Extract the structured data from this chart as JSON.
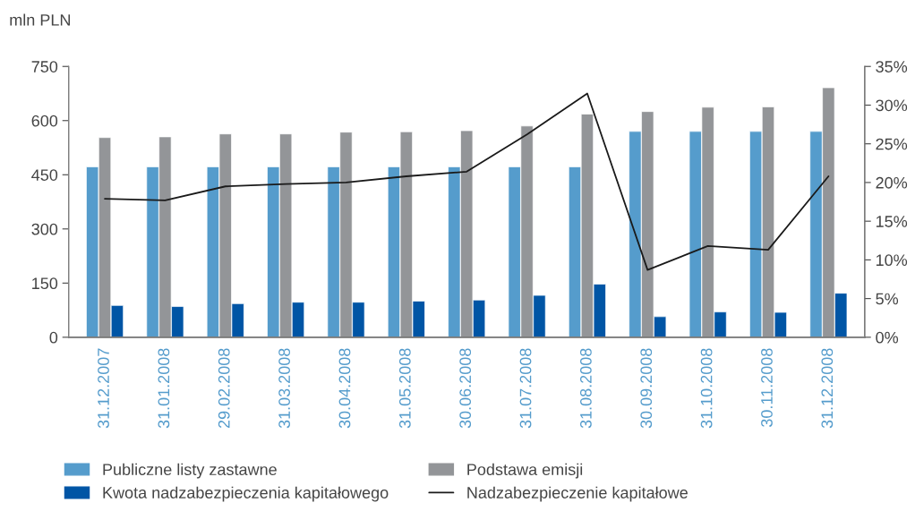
{
  "chart_data": {
    "type": "bar",
    "ylabel": "mln PLN",
    "categories": [
      "31.12.2007",
      "31.01.2008",
      "29.02.2008",
      "31.03.2008",
      "30.04.2008",
      "31.05.2008",
      "30.06.2008",
      "31.07.2008",
      "31.08.2008",
      "30.09.2008",
      "31.10.2008",
      "30.11.2008",
      "31.12.2008"
    ],
    "series": [
      {
        "name": "Publiczne listy zastawne",
        "color": "#559ccc",
        "values": [
          472,
          472,
          472,
          472,
          472,
          472,
          472,
          472,
          472,
          570,
          570,
          570,
          570
        ]
      },
      {
        "name": "Podstawa emisji",
        "color": "#939598",
        "values": [
          553,
          555,
          563,
          563,
          568,
          569,
          572,
          585,
          618,
          625,
          637,
          638,
          691
        ]
      },
      {
        "name": "Kwota nadzabezpieczenia kapitałowego",
        "color": "#0055a5",
        "values": [
          88,
          85,
          93,
          97,
          97,
          100,
          103,
          116,
          147,
          57,
          70,
          69,
          122
        ]
      },
      {
        "name": "Nadzabezpieczenie kapitałowe",
        "type": "line",
        "axis": "y2",
        "color": "#1a1a1a",
        "values": [
          17.9,
          17.7,
          19.5,
          19.8,
          20.0,
          20.8,
          21.4,
          26.2,
          31.5,
          8.7,
          11.8,
          11.3,
          20.8
        ]
      }
    ],
    "ylim": [
      0,
      750
    ],
    "yticks": [
      0,
      150,
      300,
      450,
      600,
      750
    ],
    "y2lim": [
      0,
      35
    ],
    "y2ticks": [
      {
        "value": 0,
        "label": "0%"
      },
      {
        "value": 5,
        "label": "5%"
      },
      {
        "value": 10,
        "label": "10%"
      },
      {
        "value": 15,
        "label": "15%"
      },
      {
        "value": 20,
        "label": "20%"
      },
      {
        "value": 25,
        "label": "25%"
      },
      {
        "value": 30,
        "label": "30%"
      },
      {
        "value": 35,
        "label": "35%"
      }
    ],
    "grid": false,
    "legend": "bottom"
  }
}
